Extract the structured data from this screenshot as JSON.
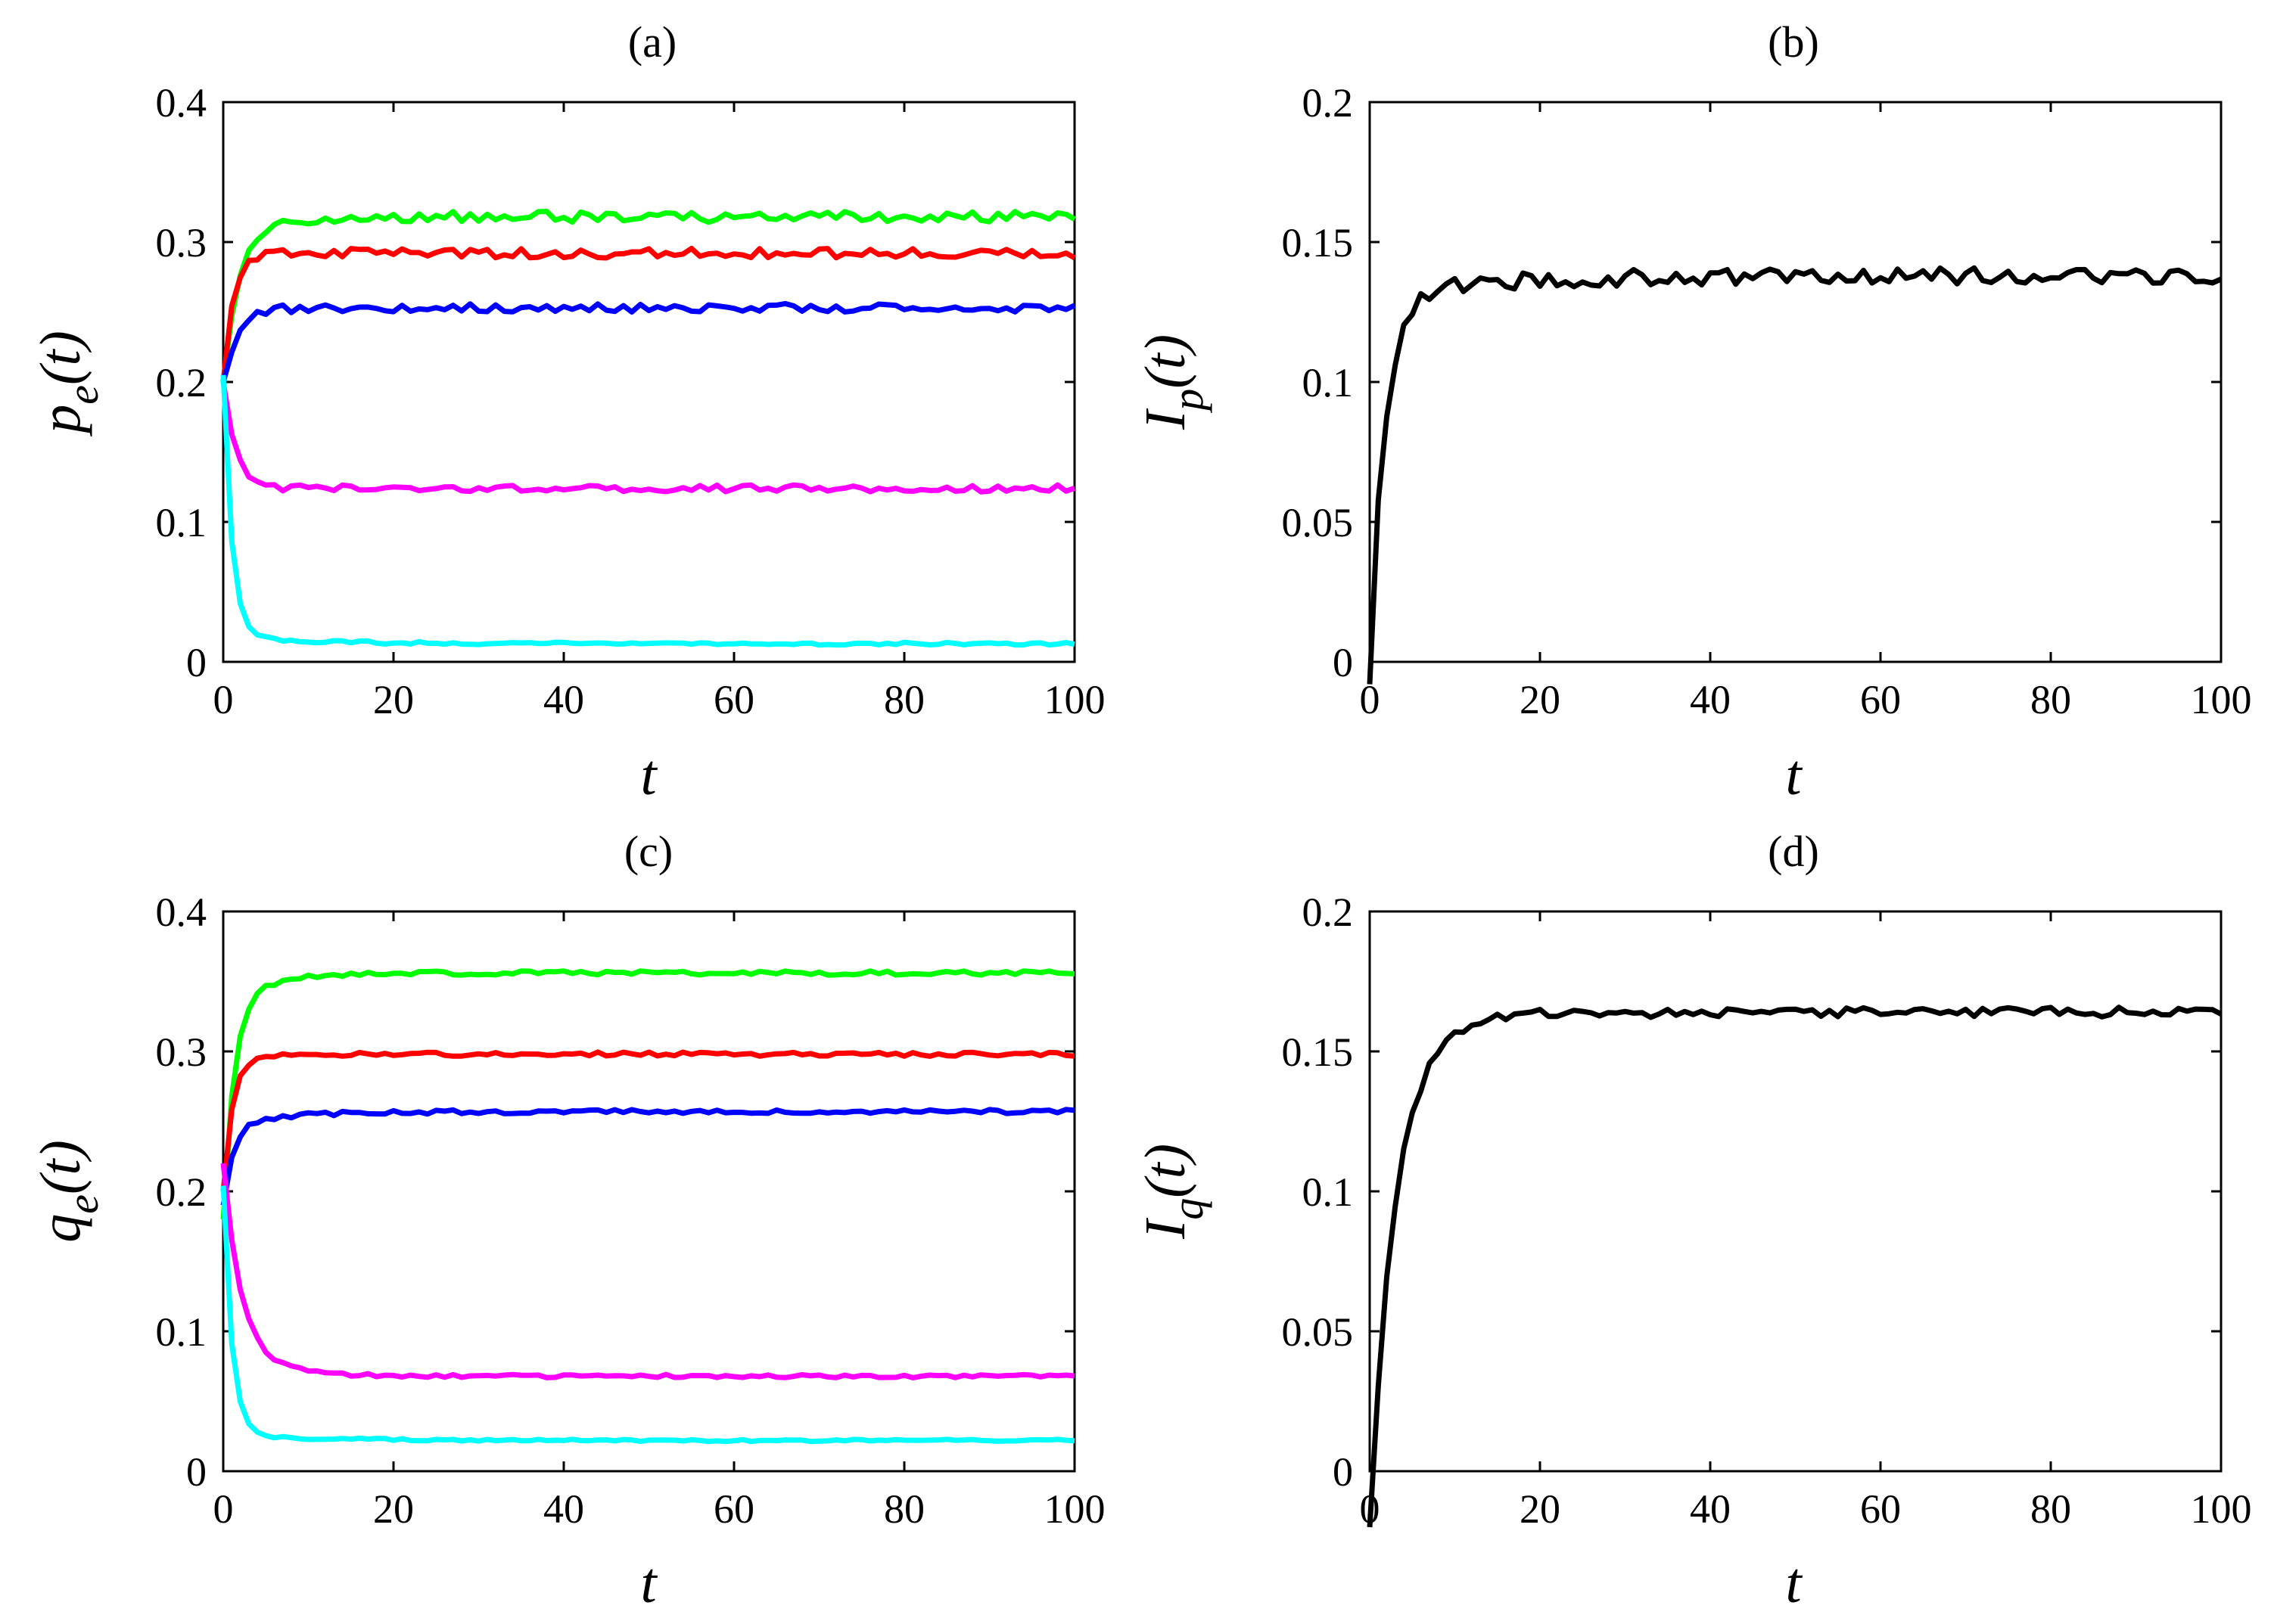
{
  "chart_data": [
    {
      "id": "a",
      "type": "line",
      "title": "(a)",
      "xlabel": "t",
      "ylabel": {
        "main": "p",
        "sub": "e",
        "suffix": "(t)"
      },
      "xlim": [
        0,
        100
      ],
      "ylim": [
        0,
        0.4
      ],
      "xticks": [
        0,
        20,
        40,
        60,
        80,
        100
      ],
      "yticks": [
        0,
        0.1,
        0.2,
        0.3,
        0.4
      ],
      "grid": false,
      "series": [
        {
          "name": "green",
          "color": "#00ff00",
          "start": 0.2,
          "rise": 0.45,
          "plateau": 0.318,
          "noise": 0.004,
          "overshoot": 0.004
        },
        {
          "name": "red",
          "color": "#ff0000",
          "start": 0.2,
          "rise": 0.9,
          "plateau": 0.292,
          "noise": 0.0035
        },
        {
          "name": "blue",
          "color": "#0000ff",
          "start": 0.2,
          "rise": 0.6,
          "plateau": 0.253,
          "noise": 0.003
        },
        {
          "name": "magenta",
          "color": "#ff00ff",
          "start": 0.2,
          "rise": 0.7,
          "plateau": 0.124,
          "noise": 0.0025
        },
        {
          "name": "cyan",
          "color": "#00ffff",
          "start": 0.2,
          "rise": 1.0,
          "plateau": 0.013,
          "noise": 0.001,
          "slow": 0.005,
          "slowRate": 0.1
        }
      ]
    },
    {
      "id": "b",
      "type": "line",
      "title": "(b)",
      "xlabel": "t",
      "ylabel": {
        "main": "I",
        "sub": "p",
        "suffix": "(t)"
      },
      "xlim": [
        0,
        100
      ],
      "ylim": [
        0,
        0.2
      ],
      "xticks": [
        0,
        20,
        40,
        60,
        80,
        100
      ],
      "yticks": [
        0,
        0.05,
        0.1,
        0.15,
        0.2
      ],
      "grid": false,
      "series": [
        {
          "name": "black",
          "color": "#000000",
          "start": 0,
          "rise": 0.6,
          "plateau": 0.138,
          "noise": 0.003,
          "slow": -0.008,
          "slowRate": 0.08
        }
      ]
    },
    {
      "id": "c",
      "type": "line",
      "title": "(c)",
      "xlabel": "t",
      "ylabel": {
        "main": "q",
        "sub": "e",
        "suffix": "(t)"
      },
      "xlim": [
        0,
        100
      ],
      "ylim": [
        0,
        0.4
      ],
      "xticks": [
        0,
        20,
        40,
        60,
        80,
        100
      ],
      "yticks": [
        0,
        0.1,
        0.2,
        0.3,
        0.4
      ],
      "grid": false,
      "series": [
        {
          "name": "green",
          "color": "#00ff00",
          "start": 0.2,
          "rise": 0.8,
          "plateau": 0.356,
          "noise": 0.0015,
          "slow": -0.02,
          "slowRate": 0.2
        },
        {
          "name": "red",
          "color": "#ff0000",
          "start": 0.2,
          "rise": 0.9,
          "plateau": 0.298,
          "noise": 0.0015
        },
        {
          "name": "blue",
          "color": "#0000ff",
          "start": 0.2,
          "rise": 0.9,
          "plateau": 0.257,
          "noise": 0.0015,
          "slow": -0.01,
          "slowRate": 0.15
        },
        {
          "name": "magenta",
          "color": "#ff00ff",
          "start": 0.2,
          "rise": 0.5,
          "plateau": 0.068,
          "noise": 0.0012,
          "slow": 0.02,
          "slowRate": 0.2
        },
        {
          "name": "cyan",
          "color": "#00ffff",
          "start": 0.2,
          "rise": 1.0,
          "plateau": 0.022,
          "noise": 0.0008,
          "slow": 0.004,
          "slowRate": 0.1
        }
      ]
    },
    {
      "id": "d",
      "type": "line",
      "title": "(d)",
      "xlabel": "t",
      "ylabel": {
        "main": "I",
        "sub": "q",
        "suffix": "(t)"
      },
      "xlim": [
        0,
        100
      ],
      "ylim": [
        0,
        0.2
      ],
      "xticks": [
        0,
        20,
        40,
        60,
        80,
        100
      ],
      "yticks": [
        0,
        0.05,
        0.1,
        0.15,
        0.2
      ],
      "grid": false,
      "series": [
        {
          "name": "black",
          "color": "#000000",
          "start": 0,
          "rise": 0.35,
          "plateau": 0.164,
          "noise": 0.0018,
          "slow": -0.02,
          "slowRate": 0.18
        }
      ]
    }
  ]
}
